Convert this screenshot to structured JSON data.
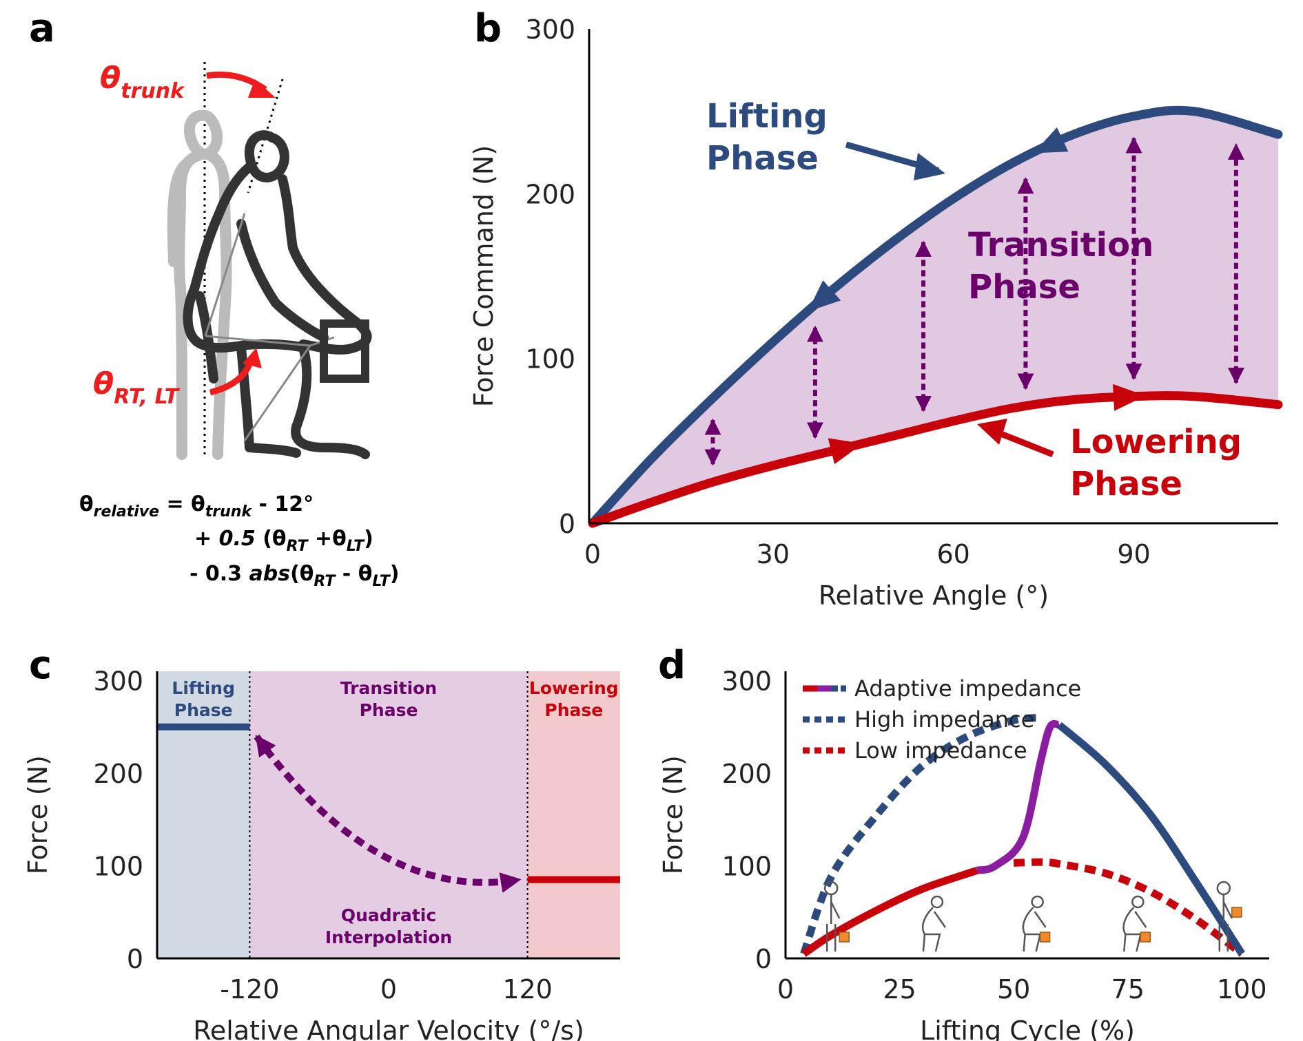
{
  "panels": {
    "a": {
      "label": "a",
      "theta_trunk": {
        "theta": "θ",
        "sub": "trunk"
      },
      "theta_rtlt": {
        "theta": "θ",
        "sub": "RT, LT"
      },
      "formula": {
        "line1": [
          {
            "t": "θ"
          },
          {
            "t": "relative",
            "sub": true
          },
          {
            "t": " = θ"
          },
          {
            "t": "trunk",
            "sub": true
          },
          {
            "t": " - 12°"
          }
        ],
        "line2": [
          {
            "t": "+ "
          },
          {
            "t": "0.5",
            "it": true
          },
          {
            "t": " (θ"
          },
          {
            "t": "RT",
            "sub": true
          },
          {
            "t": " +θ"
          },
          {
            "t": "LT",
            "sub": true
          },
          {
            "t": ")"
          }
        ],
        "line3": [
          {
            "t": "- 0.3 "
          },
          {
            "t": "abs",
            "it": true
          },
          {
            "t": "(θ"
          },
          {
            "t": "RT",
            "sub": true
          },
          {
            "t": " - θ"
          },
          {
            "t": "LT",
            "sub": true
          },
          {
            "t": ")"
          }
        ]
      }
    },
    "b": {
      "label": "b"
    },
    "c": {
      "label": "c"
    },
    "d": {
      "label": "d"
    }
  },
  "colors": {
    "lifting": "#2c4a7e",
    "lowering": "#c8000a",
    "transition": "#6a006a",
    "transition_fill": "#e2c9e2",
    "lifting_bg": "#d1d9e5",
    "transition_bg": "#e4cde2",
    "lowering_bg": "#f2cacb",
    "adaptive_mid": "#8b1ea0",
    "box": "#f08a2c",
    "figure_dark": "#333333",
    "figure_light": "#bbbbbb",
    "annot_red": "#ee1c1c"
  },
  "chart_data": [
    {
      "id": "b",
      "type": "line",
      "xlabel": "Relative Angle (°)",
      "ylabel": "Force Command (N)",
      "xlim": [
        0,
        114
      ],
      "ylim": [
        0,
        300
      ],
      "xticks": [
        0,
        30,
        60,
        90
      ],
      "yticks": [
        0,
        100,
        200,
        300
      ],
      "series": [
        {
          "name": "Lifting Phase",
          "x": [
            0,
            10,
            20,
            30,
            40,
            50,
            60,
            70,
            80,
            90,
            100,
            114
          ],
          "y": [
            0,
            40,
            76,
            110,
            142,
            171,
            197,
            219,
            236,
            247,
            250,
            236
          ]
        },
        {
          "name": "Lowering Phase",
          "x": [
            0,
            10,
            20,
            30,
            40,
            50,
            60,
            70,
            80,
            90,
            100,
            114
          ],
          "y": [
            0,
            13,
            25,
            35,
            44,
            53,
            62,
            70,
            75,
            77,
            77,
            72
          ]
        }
      ],
      "arrows_x": [
        20,
        37,
        55,
        72,
        90,
        107
      ],
      "annotations": [
        "Lifting Phase",
        "Transition Phase",
        "Lowering Phase"
      ]
    },
    {
      "id": "c",
      "type": "line",
      "xlabel": "Relative Angular Velocity (°/s)",
      "ylabel": "Force (N)",
      "xlim": [
        -200,
        200
      ],
      "ylim": [
        0,
        310
      ],
      "xticks": [
        -120,
        0,
        120
      ],
      "yticks": [
        0,
        100,
        200,
        300
      ],
      "regions": [
        {
          "name": "Lifting Phase",
          "x0": -200,
          "x1": -120
        },
        {
          "name": "Transition Phase",
          "x0": -120,
          "x1": 120
        },
        {
          "name": "Lowering Phase",
          "x0": 120,
          "x1": 200
        }
      ],
      "series": [
        {
          "name": "Lifting Phase",
          "x": [
            -200,
            -120
          ],
          "y": [
            250,
            250
          ]
        },
        {
          "name": "Quadratic Interpolation",
          "x": [
            -120,
            120
          ],
          "y": [
            250,
            85
          ],
          "control": [
            -10,
            60
          ]
        },
        {
          "name": "Lowering Phase",
          "x": [
            120,
            200
          ],
          "y": [
            85,
            85
          ]
        }
      ],
      "annotations": [
        "Quadratic Interpolation"
      ]
    },
    {
      "id": "d",
      "type": "line",
      "xlabel": "Lifting Cycle (%)",
      "ylabel": "Force (N)",
      "xlim": [
        0,
        106
      ],
      "ylim": [
        0,
        310
      ],
      "xticks": [
        0,
        25,
        50,
        75,
        100
      ],
      "yticks": [
        0,
        100,
        200,
        300
      ],
      "legend_position": "top-left",
      "series": [
        {
          "name": "High impedance",
          "x": [
            4,
            10,
            20,
            30,
            40,
            50,
            56,
            60,
            70,
            80,
            90,
            100
          ],
          "y": [
            5,
            88,
            155,
            208,
            240,
            257,
            260,
            252,
            210,
            155,
            82,
            5
          ]
        },
        {
          "name": "Low impedance",
          "x": [
            4,
            10,
            20,
            30,
            40,
            50,
            56,
            60,
            70,
            80,
            90,
            100
          ],
          "y": [
            5,
            25,
            52,
            75,
            92,
            103,
            104,
            102,
            92,
            72,
            42,
            5
          ]
        },
        {
          "name": "Adaptive impedance",
          "x": [
            4,
            10,
            20,
            30,
            42,
            46,
            52,
            56,
            58,
            60,
            70,
            80,
            90,
            100
          ],
          "y": [
            5,
            25,
            52,
            75,
            95,
            100,
            130,
            215,
            250,
            252,
            210,
            155,
            82,
            5
          ]
        }
      ],
      "legend": [
        "Adaptive impedance",
        "High impedance",
        "Low impedance"
      ]
    }
  ]
}
